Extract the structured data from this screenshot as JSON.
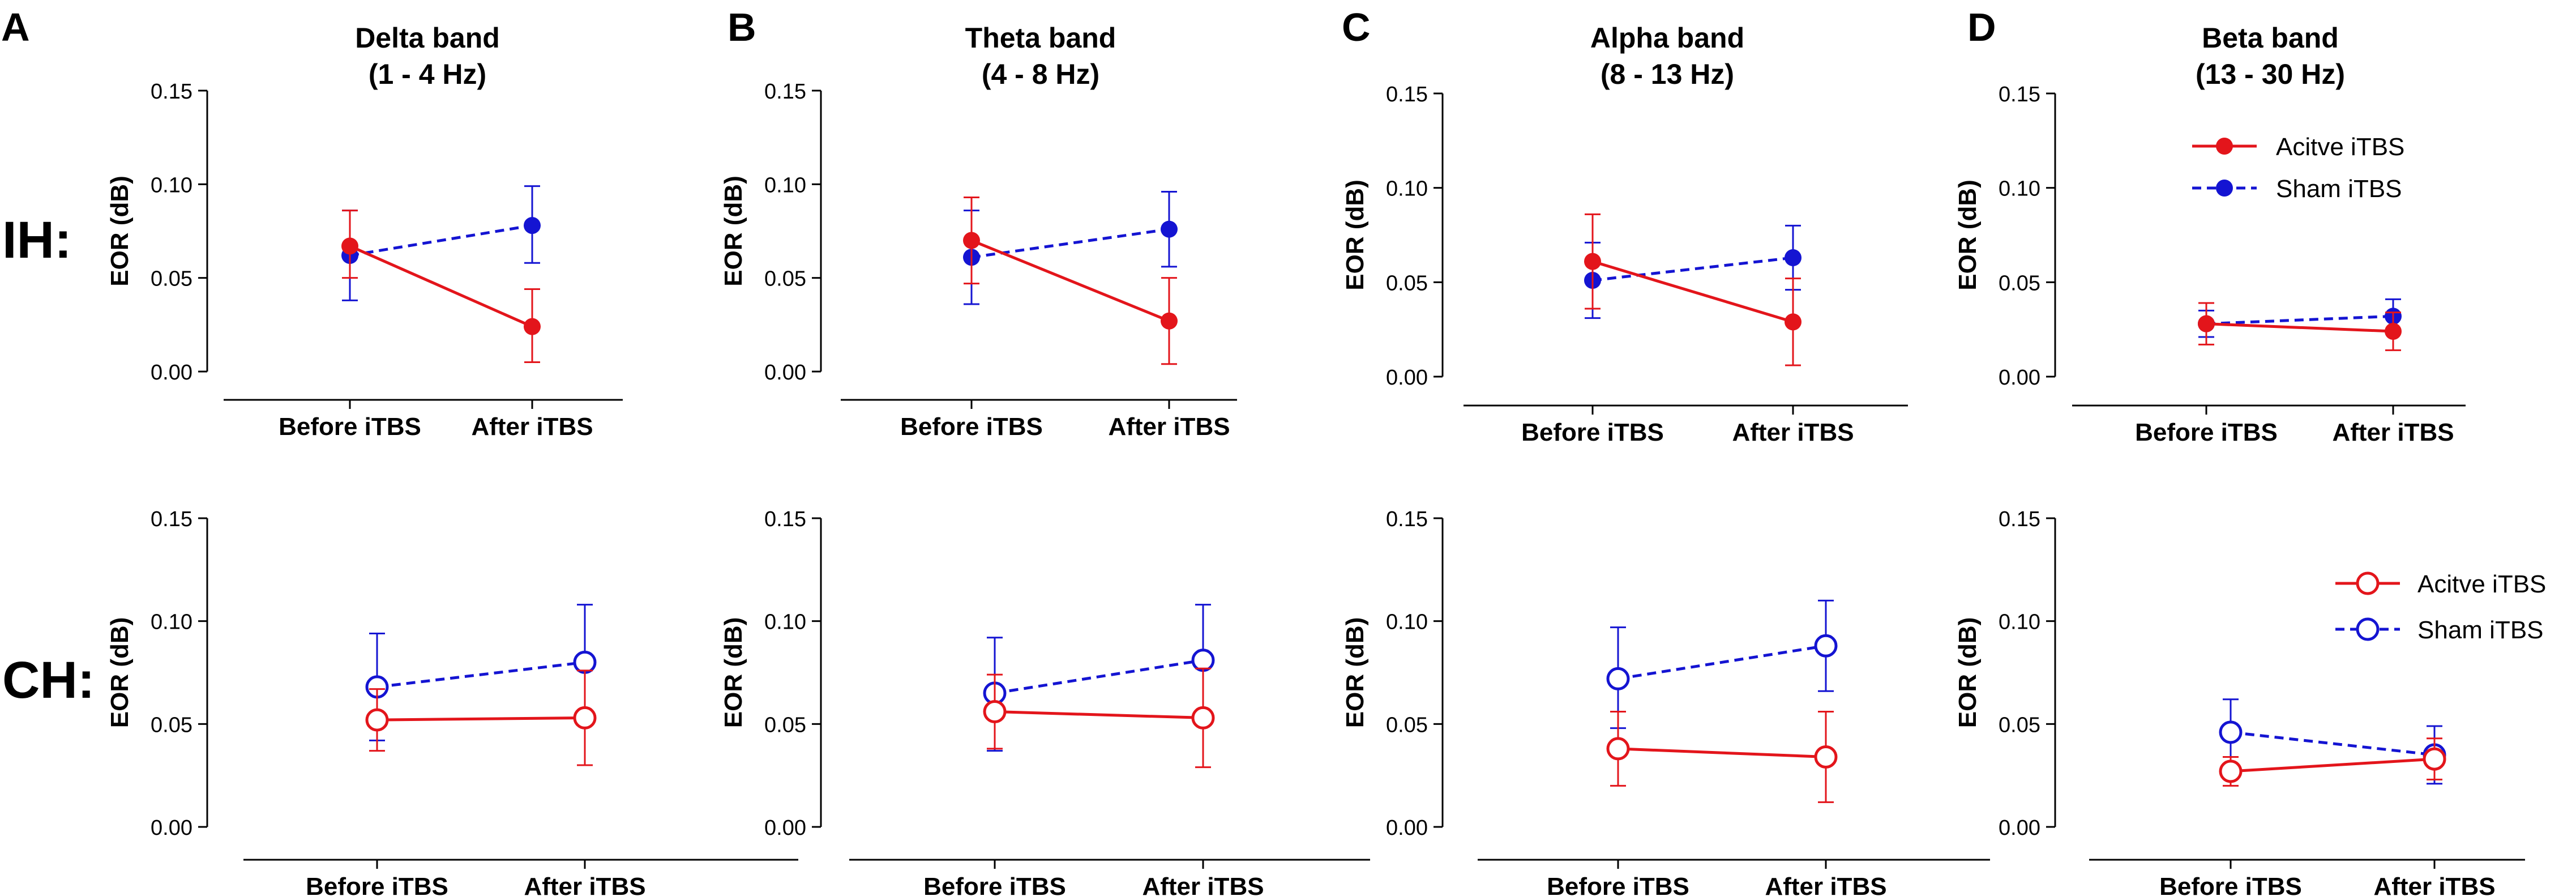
{
  "figure": {
    "panel_letters": [
      "A",
      "B",
      "C",
      "D"
    ],
    "row_labels": [
      "IH:",
      "CH:"
    ],
    "band_titles": [
      [
        "Delta band",
        "(1 - 4 Hz)"
      ],
      [
        "Theta band",
        "(4 - 8 Hz)"
      ],
      [
        "Alpha band",
        "(8 - 13 Hz)"
      ],
      [
        "Beta band",
        "(13 - 30 Hz)"
      ]
    ]
  },
  "colors": {
    "active": "#e3151b",
    "sham": "#1414d2",
    "axis": "#000000"
  },
  "legend": {
    "active_label": "Acitve iTBS",
    "sham_label": "Sham iTBS",
    "placement": "top-right of panel D"
  },
  "chart_data": [
    {
      "type": "line",
      "panel": "A",
      "row": "IH",
      "marker": "filled",
      "categories": [
        "Before iTBS",
        "After iTBS"
      ],
      "ylabel": "EOR (dB)",
      "ylim": [
        0,
        0.15
      ],
      "yticks": [
        "0.00",
        "0.05",
        "0.10",
        "0.15"
      ],
      "series": [
        {
          "name": "Acitve iTBS",
          "values": [
            0.067,
            0.024
          ],
          "err_low": [
            0.05,
            0.005
          ],
          "err_high": [
            0.086,
            0.044
          ]
        },
        {
          "name": "Sham iTBS",
          "values": [
            0.062,
            0.078
          ],
          "err_low": [
            0.038,
            0.058
          ],
          "err_high": [
            0.086,
            0.099
          ]
        }
      ]
    },
    {
      "type": "line",
      "panel": "B",
      "row": "IH",
      "marker": "filled",
      "categories": [
        "Before iTBS",
        "After iTBS"
      ],
      "ylabel": "EOR (dB)",
      "ylim": [
        0,
        0.15
      ],
      "yticks": [
        "0.00",
        "0.05",
        "0.10",
        "0.15"
      ],
      "series": [
        {
          "name": "Acitve iTBS",
          "values": [
            0.07,
            0.027
          ],
          "err_low": [
            0.047,
            0.004
          ],
          "err_high": [
            0.093,
            0.05
          ]
        },
        {
          "name": "Sham iTBS",
          "values": [
            0.061,
            0.076
          ],
          "err_low": [
            0.036,
            0.056
          ],
          "err_high": [
            0.086,
            0.096
          ]
        }
      ]
    },
    {
      "type": "line",
      "panel": "C",
      "row": "IH",
      "marker": "filled",
      "categories": [
        "Before iTBS",
        "After iTBS"
      ],
      "ylabel": "EOR (dB)",
      "ylim": [
        0,
        0.15
      ],
      "yticks": [
        "0.00",
        "0.05",
        "0.10",
        "0.15"
      ],
      "series": [
        {
          "name": "Acitve iTBS",
          "values": [
            0.061,
            0.029
          ],
          "err_low": [
            0.036,
            0.006
          ],
          "err_high": [
            0.086,
            0.052
          ]
        },
        {
          "name": "Sham iTBS",
          "values": [
            0.051,
            0.063
          ],
          "err_low": [
            0.031,
            0.046
          ],
          "err_high": [
            0.071,
            0.08
          ]
        }
      ]
    },
    {
      "type": "line",
      "panel": "D",
      "row": "IH",
      "marker": "filled",
      "categories": [
        "Before iTBS",
        "After iTBS"
      ],
      "ylabel": "EOR (dB)",
      "ylim": [
        0,
        0.15
      ],
      "yticks": [
        "0.00",
        "0.05",
        "0.10",
        "0.15"
      ],
      "series": [
        {
          "name": "Acitve iTBS",
          "values": [
            0.028,
            0.024
          ],
          "err_low": [
            0.017,
            0.014
          ],
          "err_high": [
            0.039,
            0.034
          ]
        },
        {
          "name": "Sham iTBS",
          "values": [
            0.028,
            0.032
          ],
          "err_low": [
            0.021,
            0.023
          ],
          "err_high": [
            0.035,
            0.041
          ]
        }
      ]
    },
    {
      "type": "line",
      "panel": "A",
      "row": "CH",
      "marker": "open",
      "categories": [
        "Before iTBS",
        "After iTBS"
      ],
      "ylabel": "EOR (dB)",
      "ylim": [
        0,
        0.15
      ],
      "yticks": [
        "0.00",
        "0.05",
        "0.10",
        "0.15"
      ],
      "series": [
        {
          "name": "Acitve iTBS",
          "values": [
            0.052,
            0.053
          ],
          "err_low": [
            0.037,
            0.03
          ],
          "err_high": [
            0.067,
            0.076
          ]
        },
        {
          "name": "Sham iTBS",
          "values": [
            0.068,
            0.08
          ],
          "err_low": [
            0.042,
            0.052
          ],
          "err_high": [
            0.094,
            0.108
          ]
        }
      ]
    },
    {
      "type": "line",
      "panel": "B",
      "row": "CH",
      "marker": "open",
      "categories": [
        "Before iTBS",
        "After iTBS"
      ],
      "ylabel": "EOR (dB)",
      "ylim": [
        0,
        0.15
      ],
      "yticks": [
        "0.00",
        "0.05",
        "0.10",
        "0.15"
      ],
      "series": [
        {
          "name": "Acitve iTBS",
          "values": [
            0.056,
            0.053
          ],
          "err_low": [
            0.038,
            0.029
          ],
          "err_high": [
            0.074,
            0.077
          ]
        },
        {
          "name": "Sham iTBS",
          "values": [
            0.065,
            0.081
          ],
          "err_low": [
            0.037,
            0.054
          ],
          "err_high": [
            0.092,
            0.108
          ]
        }
      ]
    },
    {
      "type": "line",
      "panel": "C",
      "row": "CH",
      "marker": "open",
      "categories": [
        "Before iTBS",
        "After iTBS"
      ],
      "ylabel": "EOR (dB)",
      "ylim": [
        0,
        0.15
      ],
      "yticks": [
        "0.00",
        "0.05",
        "0.10",
        "0.15"
      ],
      "series": [
        {
          "name": "Acitve iTBS",
          "values": [
            0.038,
            0.034
          ],
          "err_low": [
            0.02,
            0.012
          ],
          "err_high": [
            0.056,
            0.056
          ]
        },
        {
          "name": "Sham iTBS",
          "values": [
            0.072,
            0.088
          ],
          "err_low": [
            0.048,
            0.066
          ],
          "err_high": [
            0.097,
            0.11
          ]
        }
      ]
    },
    {
      "type": "line",
      "panel": "D",
      "row": "CH",
      "marker": "open",
      "categories": [
        "Before iTBS",
        "After iTBS"
      ],
      "ylabel": "EOR (dB)",
      "ylim": [
        0,
        0.15
      ],
      "yticks": [
        "0.00",
        "0.05",
        "0.10",
        "0.15"
      ],
      "series": [
        {
          "name": "Acitve iTBS",
          "values": [
            0.027,
            0.033
          ],
          "err_low": [
            0.02,
            0.023
          ],
          "err_high": [
            0.034,
            0.043
          ]
        },
        {
          "name": "Sham iTBS",
          "values": [
            0.046,
            0.035
          ],
          "err_low": [
            0.03,
            0.021
          ],
          "err_high": [
            0.062,
            0.049
          ]
        }
      ]
    }
  ]
}
